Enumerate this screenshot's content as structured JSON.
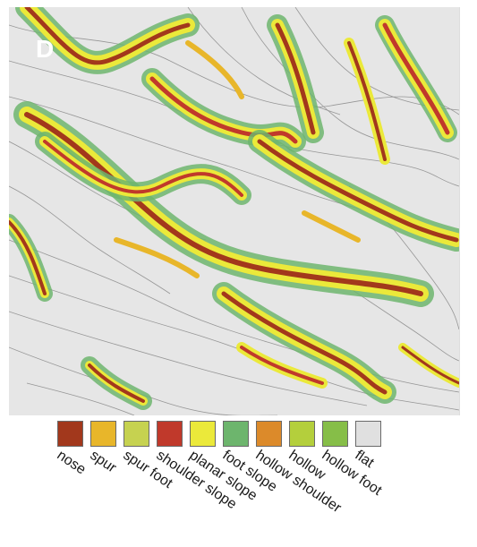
{
  "figure": {
    "panel_label": "D"
  },
  "legend": {
    "items": [
      {
        "label": "nose",
        "color": "#a2381c"
      },
      {
        "label": "spur",
        "color": "#e8b62a"
      },
      {
        "label": "spur foot",
        "color": "#c6d250"
      },
      {
        "label": "shoulder slope",
        "color": "#c0392b"
      },
      {
        "label": "planar slope",
        "color": "#ebe93a"
      },
      {
        "label": "foot slope",
        "color": "#6db56d"
      },
      {
        "label": "hollow shoulder",
        "color": "#dc8a2a"
      },
      {
        "label": "hollow",
        "color": "#b4cf3c"
      },
      {
        "label": "hollow foot",
        "color": "#86be48"
      },
      {
        "label": "flat",
        "color": "#e0e0e0"
      }
    ]
  },
  "map": {
    "background_class": "flat",
    "contour_color": "#555555",
    "visible_classes": [
      "nose",
      "shoulder slope",
      "planar slope",
      "spur",
      "foot slope",
      "hollow",
      "flat"
    ]
  }
}
